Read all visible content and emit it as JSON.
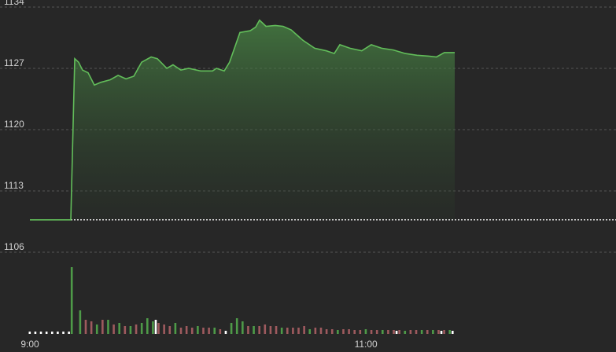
{
  "chart_data": {
    "type": "line",
    "x": [
      0,
      14.6,
      16,
      17.4,
      18.8,
      20.8,
      23,
      25.3,
      28.7,
      31.5,
      34.3,
      37.1,
      39.9,
      43.3,
      45.5,
      48.9,
      51.1,
      53.9,
      56.7,
      61,
      65.2,
      66.6,
      69.4,
      71.3,
      75,
      78.7,
      80.6,
      82,
      84.3,
      87.6,
      90.4,
      93.3,
      97.5,
      101.7,
      105.9,
      108.7,
      110.7,
      114.3,
      118.5,
      121.9,
      125.6,
      129.8,
      134,
      138.2,
      142.4,
      145.2,
      148,
      151.7
    ],
    "values": [
      1109.7,
      1109.7,
      1128.1,
      1127.7,
      1126.8,
      1126.5,
      1125.1,
      1125.4,
      1125.7,
      1126.2,
      1125.8,
      1126.1,
      1127.7,
      1128.3,
      1128.1,
      1127,
      1127.4,
      1126.8,
      1127,
      1126.7,
      1126.7,
      1127,
      1126.7,
      1127.7,
      1131.1,
      1131.3,
      1131.7,
      1132.5,
      1131.8,
      1131.9,
      1131.8,
      1131.4,
      1130.2,
      1129.3,
      1129,
      1128.7,
      1129.7,
      1129.3,
      1129,
      1129.7,
      1129.3,
      1129.1,
      1128.7,
      1128.5,
      1128.4,
      1128.3,
      1128.8,
      1128.8
    ],
    "color": "#62bd5a",
    "reference": 1109.7,
    "xlim": [
      0,
      209.3
    ],
    "ylim": [
      1106,
      1134
    ],
    "yticks": [
      1106,
      1113,
      1120,
      1127,
      1134
    ],
    "xticks": [
      {
        "value": 0,
        "label": "9:00"
      },
      {
        "value": 120,
        "label": "11:00"
      }
    ],
    "grid": true,
    "volume": {
      "ylim": [
        0,
        90
      ],
      "series": [
        {
          "color": "#ffffff",
          "x": [
            0,
            2,
            4,
            6,
            8,
            10,
            12,
            14,
            45,
            70,
            131,
            147,
            151
          ],
          "values": [
            3,
            3,
            3,
            3,
            3,
            3,
            3,
            3,
            18,
            4,
            4,
            4,
            4
          ]
        },
        {
          "color": "#4e9a48",
          "x": [
            15,
            18,
            24,
            28,
            32,
            36,
            40,
            42,
            44,
            52,
            60,
            66,
            72,
            74,
            76,
            80,
            90,
            100,
            110,
            120,
            126,
            134,
            140,
            144,
            150
          ],
          "values": [
            85,
            30,
            12,
            18,
            14,
            10,
            14,
            20,
            16,
            14,
            10,
            8,
            14,
            20,
            16,
            10,
            8,
            6,
            5,
            6,
            5,
            4,
            5,
            5,
            5
          ]
        },
        {
          "color": "#9e5a5e",
          "x": [
            20,
            22,
            26,
            30,
            34,
            38,
            46,
            48,
            50,
            54,
            56,
            58,
            62,
            64,
            68,
            78,
            82,
            84,
            86,
            88,
            92,
            94,
            96,
            98,
            102,
            104,
            106,
            108,
            112,
            114,
            116,
            118,
            122,
            124,
            128,
            130,
            132,
            136,
            138,
            142,
            146,
            148
          ],
          "values": [
            18,
            16,
            18,
            12,
            10,
            12,
            14,
            12,
            10,
            8,
            10,
            8,
            8,
            8,
            6,
            10,
            10,
            12,
            10,
            10,
            8,
            8,
            8,
            10,
            8,
            8,
            6,
            6,
            6,
            6,
            5,
            5,
            5,
            5,
            5,
            5,
            5,
            5,
            5,
            5,
            5,
            5
          ]
        }
      ]
    }
  }
}
